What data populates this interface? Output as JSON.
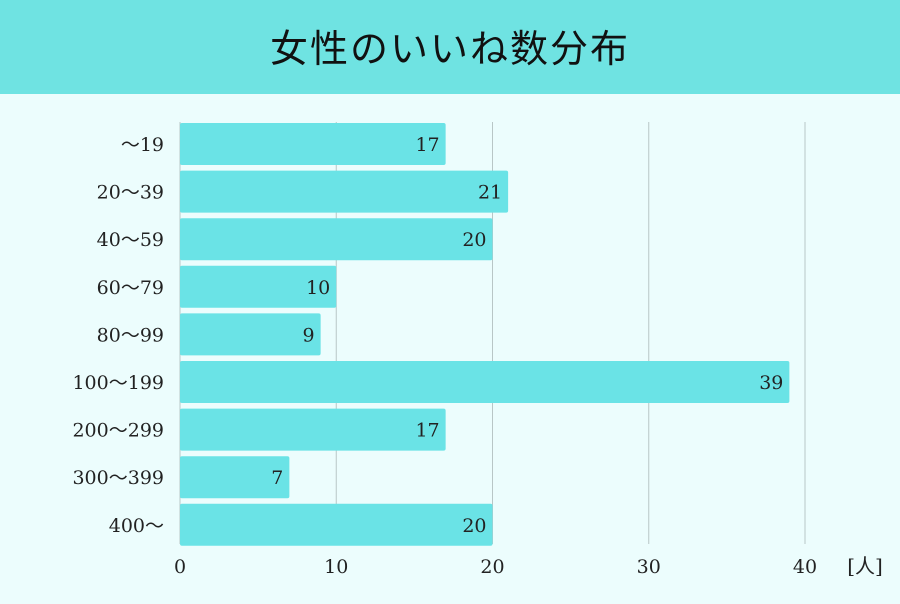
{
  "header": {
    "title": "女性のいいね数分布"
  },
  "chart_data": {
    "type": "bar",
    "orientation": "horizontal",
    "title": "女性のいいね数分布",
    "categories": [
      "～19",
      "20～39",
      "40～59",
      "60～79",
      "80～99",
      "100～199",
      "200～299",
      "300～399",
      "400～"
    ],
    "values": [
      17,
      21,
      20,
      10,
      9,
      39,
      17,
      7,
      20
    ],
    "xticks": [
      0,
      10,
      20,
      30,
      40
    ],
    "xlim": [
      0,
      40
    ],
    "xunit": "[人]",
    "grid": true,
    "colors": {
      "bar": "#6ae3e6",
      "grid": "#b8c6c6",
      "header": "#6fe3e2",
      "background": "#ecfdfd"
    }
  }
}
